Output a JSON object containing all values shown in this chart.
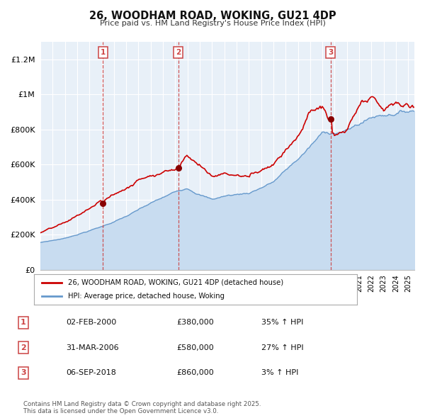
{
  "title": "26, WOODHAM ROAD, WOKING, GU21 4DP",
  "subtitle": "Price paid vs. HM Land Registry's House Price Index (HPI)",
  "background_color": "#ffffff",
  "plot_bg_color": "#e8f0f8",
  "grid_color": "#ffffff",
  "hpi_line_color": "#6699cc",
  "hpi_fill_color": "#c8dcf0",
  "house_color": "#cc0000",
  "vline_color": "#cc4444",
  "marker_color": "#880000",
  "purchases": [
    {
      "label": "1",
      "year": 2000.09,
      "price": 380000,
      "hpi_pct": "35%",
      "date_str": "02-FEB-2000"
    },
    {
      "label": "2",
      "year": 2006.25,
      "price": 580000,
      "hpi_pct": "27%",
      "date_str": "31-MAR-2006"
    },
    {
      "label": "3",
      "year": 2018.67,
      "price": 860000,
      "hpi_pct": "3%",
      "date_str": "06-SEP-2018"
    }
  ],
  "legend_house": "26, WOODHAM ROAD, WOKING, GU21 4DP (detached house)",
  "legend_hpi": "HPI: Average price, detached house, Woking",
  "footnote": "Contains HM Land Registry data © Crown copyright and database right 2025.\nThis data is licensed under the Open Government Licence v3.0.",
  "ytick_labels": [
    "£0",
    "£200K",
    "£400K",
    "£600K",
    "£800K",
    "£1M",
    "£1.2M"
  ],
  "ytick_values": [
    0,
    200000,
    400000,
    600000,
    800000,
    1000000,
    1200000
  ],
  "ylim": [
    0,
    1300000
  ],
  "xlim_start": 1995.0,
  "xlim_end": 2025.5
}
